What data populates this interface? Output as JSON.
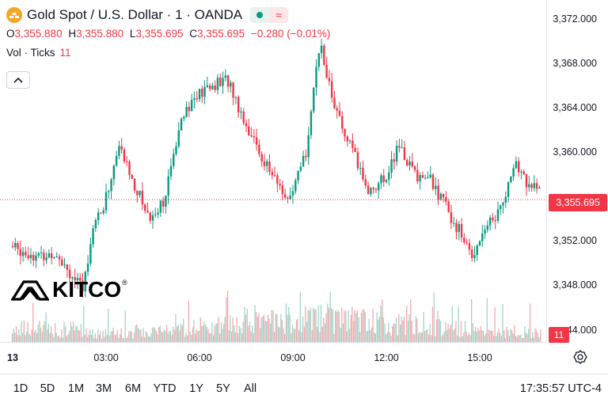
{
  "legend": {
    "title": "Gold Spot / U.S. Dollar · 1 · OANDA",
    "ohlc": [
      {
        "key": "O",
        "value": "3,355.880"
      },
      {
        "key": "H",
        "value": "3,355.880"
      },
      {
        "key": "L",
        "value": "3,355.695"
      },
      {
        "key": "C",
        "value": "3,355.695"
      }
    ],
    "change": "−0.280 (−0.01%)",
    "volume_label": "Vol · Ticks",
    "volume_value": "11",
    "wave_icon": "≈"
  },
  "watermark": {
    "text": "KITCO",
    "mark": "®"
  },
  "price_axis": {
    "ticks": [
      "3,372.000",
      "3,368.000",
      "3,364.000",
      "3,360.000",
      "3,352.000",
      "3,348.000",
      "44.000"
    ],
    "current_price": "3,355.695",
    "volume_badge": "11"
  },
  "time_axis": {
    "day_label": "13",
    "ticks": [
      "03:00",
      "06:00",
      "09:00",
      "12:00",
      "15:00"
    ]
  },
  "bottom_bar": {
    "ranges": [
      "1D",
      "5D",
      "1M",
      "3M",
      "6M",
      "YTD",
      "1Y",
      "5Y",
      "All"
    ],
    "clock": "17:35:57 UTC-4"
  },
  "colors": {
    "up": "#089981",
    "down": "#f23645",
    "up_volume": "#9fd6c8",
    "down_volume": "#f6a9ae"
  },
  "chart_data": {
    "type": "candlestick",
    "symbol": "Gold Spot / U.S. Dollar",
    "interval": "1",
    "ylim": [
      3346,
      3373.6
    ],
    "last_price": 3355.695,
    "price_path": [
      {
        "t": "00:00",
        "price": 3351.5
      },
      {
        "t": "00:30",
        "price": 3351.0
      },
      {
        "t": "01:00",
        "price": 3350.5
      },
      {
        "t": "01:30",
        "price": 3351.0
      },
      {
        "t": "02:00",
        "price": 3348.8
      },
      {
        "t": "02:20",
        "price": 3347.5
      },
      {
        "t": "02:40",
        "price": 3353.5
      },
      {
        "t": "03:00",
        "price": 3355.0
      },
      {
        "t": "03:30",
        "price": 3360.5
      },
      {
        "t": "04:00",
        "price": 3357.0
      },
      {
        "t": "04:30",
        "price": 3354.0
      },
      {
        "t": "05:00",
        "price": 3356.0
      },
      {
        "t": "05:30",
        "price": 3363.5
      },
      {
        "t": "06:00",
        "price": 3365.0
      },
      {
        "t": "06:30",
        "price": 3366.0
      },
      {
        "t": "07:00",
        "price": 3366.5
      },
      {
        "t": "07:30",
        "price": 3363.0
      },
      {
        "t": "08:00",
        "price": 3360.0
      },
      {
        "t": "08:30",
        "price": 3357.5
      },
      {
        "t": "09:00",
        "price": 3355.5
      },
      {
        "t": "09:30",
        "price": 3360.0
      },
      {
        "t": "09:45",
        "price": 3366.0
      },
      {
        "t": "10:00",
        "price": 3369.5
      },
      {
        "t": "10:20",
        "price": 3365.0
      },
      {
        "t": "10:40",
        "price": 3362.0
      },
      {
        "t": "11:00",
        "price": 3360.0
      },
      {
        "t": "11:30",
        "price": 3356.5
      },
      {
        "t": "12:00",
        "price": 3357.5
      },
      {
        "t": "12:30",
        "price": 3360.5
      },
      {
        "t": "13:00",
        "price": 3358.0
      },
      {
        "t": "13:30",
        "price": 3357.5
      },
      {
        "t": "14:00",
        "price": 3355.0
      },
      {
        "t": "14:30",
        "price": 3352.5
      },
      {
        "t": "14:50",
        "price": 3350.5
      },
      {
        "t": "15:10",
        "price": 3353.0
      },
      {
        "t": "15:40",
        "price": 3354.5
      },
      {
        "t": "16:00",
        "price": 3357.0
      },
      {
        "t": "16:15",
        "price": 3358.8
      },
      {
        "t": "16:40",
        "price": 3357.0
      },
      {
        "t": "17:00",
        "price": 3356.5
      },
      {
        "t": "17:30",
        "price": 3355.7
      }
    ]
  }
}
